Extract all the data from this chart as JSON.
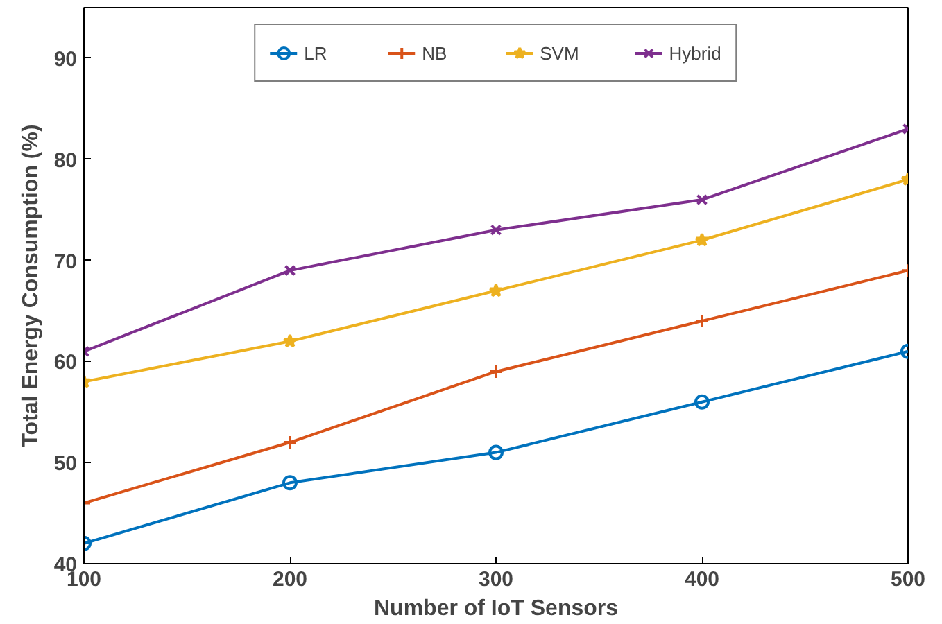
{
  "chart_data": {
    "type": "line",
    "xlabel": "Number of IoT Sensors",
    "ylabel": "Total Energy Consumption (%)",
    "x": [
      100,
      200,
      300,
      400,
      500
    ],
    "series": [
      {
        "name": "LR",
        "color": "#0072bd",
        "marker": "circle",
        "values": [
          42,
          48,
          51,
          56,
          61
        ]
      },
      {
        "name": "NB",
        "color": "#d95319",
        "marker": "cross",
        "values": [
          46,
          52,
          59,
          64,
          69
        ]
      },
      {
        "name": "SVM",
        "color": "#edb120",
        "marker": "star",
        "values": [
          58,
          62,
          67,
          72,
          78
        ]
      },
      {
        "name": "Hybrid",
        "color": "#7e2f8e",
        "marker": "x",
        "values": [
          61,
          69,
          73,
          76,
          83
        ]
      }
    ],
    "xlim": [
      100,
      500
    ],
    "ylim": [
      40,
      95
    ],
    "xticks": [
      100,
      200,
      300,
      400,
      500
    ],
    "yticks": [
      40,
      50,
      60,
      70,
      80,
      90
    ],
    "grid": false,
    "legend": "top",
    "line_style": "solid"
  }
}
